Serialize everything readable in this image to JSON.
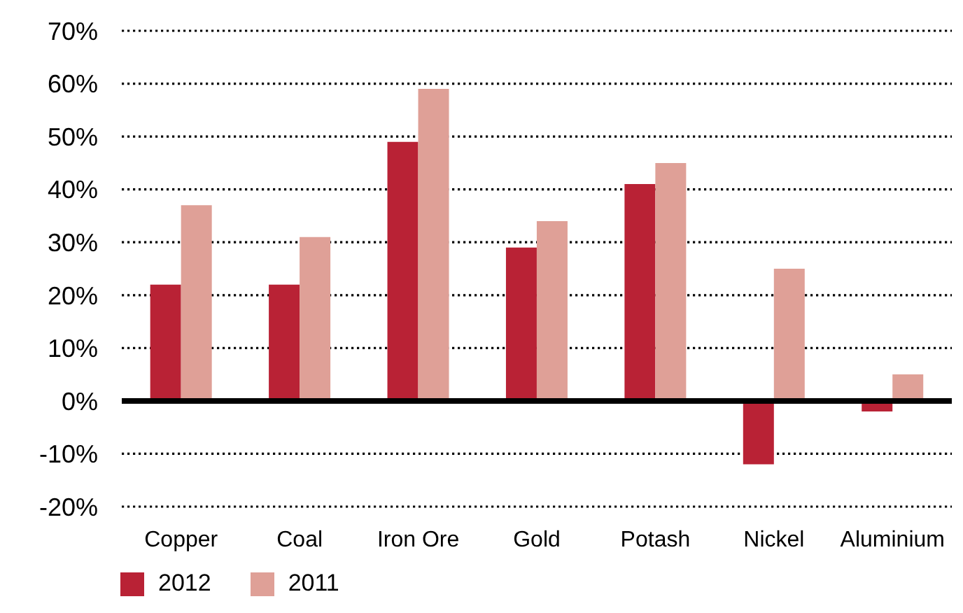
{
  "chart_data": {
    "type": "bar",
    "categories": [
      "Copper",
      "Coal",
      "Iron Ore",
      "Gold",
      "Potash",
      "Nickel",
      "Aluminium"
    ],
    "series": [
      {
        "name": "2012",
        "color": "#b92235",
        "values": [
          22,
          22,
          49,
          29,
          41,
          -12,
          -2
        ]
      },
      {
        "name": "2011",
        "color": "#dfa097",
        "values": [
          37,
          31,
          59,
          34,
          45,
          25,
          5
        ]
      }
    ],
    "ylim": [
      -20,
      70
    ],
    "yticks": [
      {
        "value": -20,
        "label": "-20%"
      },
      {
        "value": -10,
        "label": "-10%"
      },
      {
        "value": 0,
        "label": "0%"
      },
      {
        "value": 10,
        "label": "10%"
      },
      {
        "value": 20,
        "label": "20%"
      },
      {
        "value": 30,
        "label": "30%"
      },
      {
        "value": 40,
        "label": "40%"
      },
      {
        "value": 50,
        "label": "50%"
      },
      {
        "value": 60,
        "label": "60%"
      },
      {
        "value": 70,
        "label": "70%"
      }
    ],
    "grid": "y",
    "legend": "bottom left",
    "ref_lines": [
      {
        "axis": "y",
        "value": 0,
        "color": "#000000"
      }
    ]
  }
}
